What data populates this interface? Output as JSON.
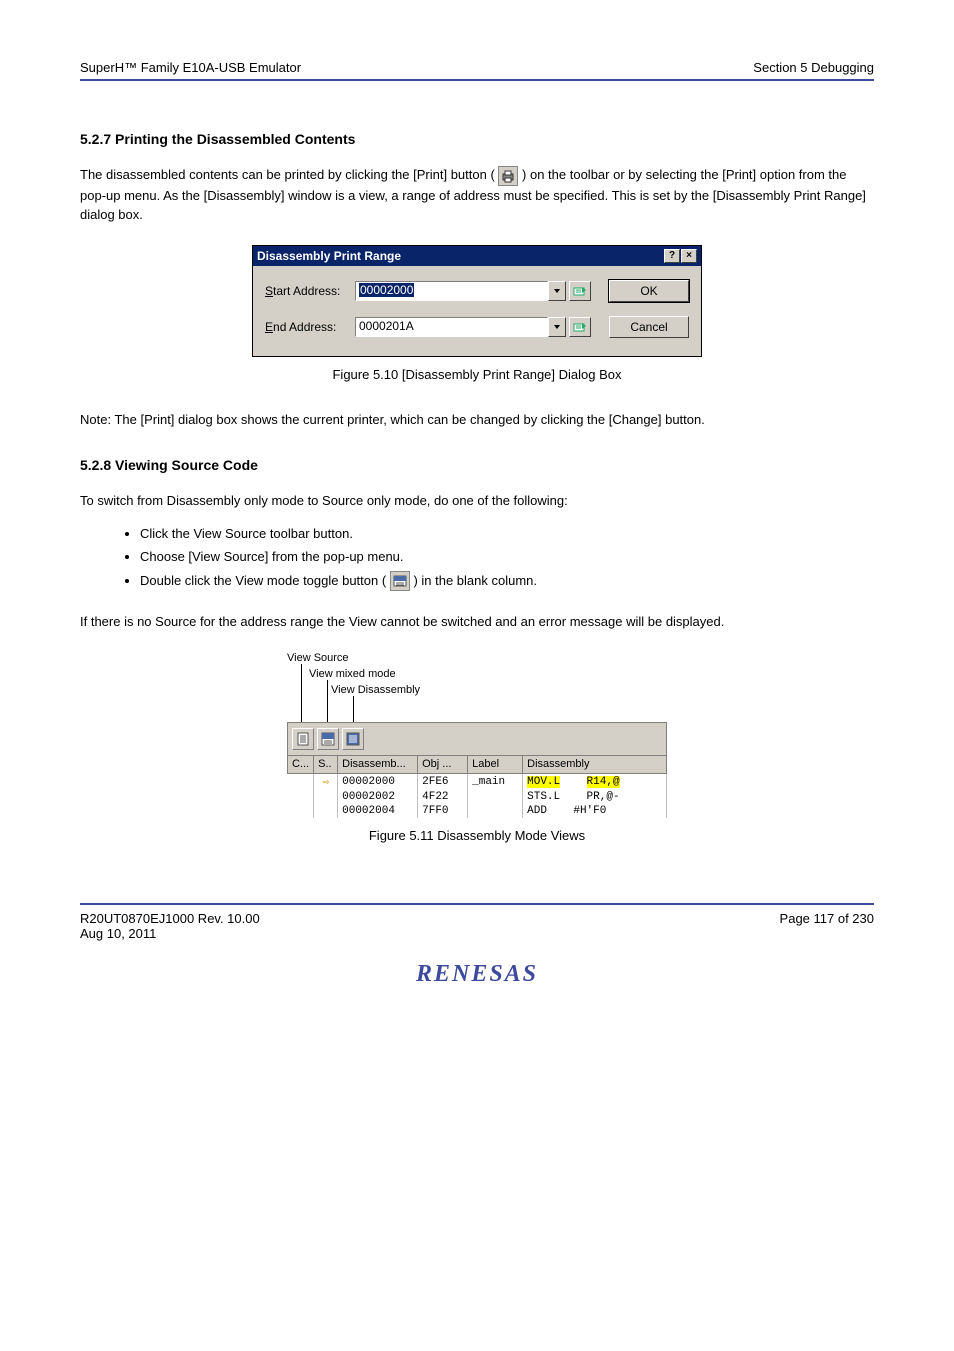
{
  "header": {
    "left": "SuperH™ Family E10A-USB Emulator",
    "right": "Section 5   Debugging"
  },
  "section1": {
    "title": "5.2.7     Printing the Disassembled Contents",
    "para1_a": "The disassembled contents can be printed by clicking the [Print] button (",
    "para1_b": ") on the toolbar or by selecting the [Print] option from the pop-up menu.  As the [Disassembly] window is a view, a range of address must be specified.  This is set by the [Disassembly Print Range] dialog box.",
    "note": "Note: The [Print] dialog box shows the current printer, which can be changed by clicking the [Change] button."
  },
  "dialog": {
    "title": "Disassembly Print Range",
    "start_label": "Start Address:",
    "start_value": "00002000",
    "end_label": "End Address:",
    "end_value": "0000201A",
    "ok": "OK",
    "cancel": "Cancel",
    "title_bg": "#0a246a",
    "body_bg": "#d4d0c8"
  },
  "figure1_caption": "Figure 5.10   [Disassembly Print Range] Dialog Box",
  "section2": {
    "title": "5.2.8     Viewing Source Code",
    "para1": "To switch from Disassembly only mode to Source only mode, do one of the following:",
    "bullets": [
      "Click the View Source toolbar button.",
      "Choose [View Source] from the pop-up menu.",
      "Double click the View mode toggle button ("
    ],
    "bullet3_suffix": ") in the blank column.",
    "para2": "If there is no Source for the address range the View cannot be switched and an error message will be displayed."
  },
  "toolbar_shot": {
    "callouts": [
      "View Source",
      "View mixed mode",
      "View Disassembly"
    ],
    "columns": [
      "C...",
      "S..",
      "Disassemb...",
      "Obj ...",
      "Label",
      "Disassembly"
    ],
    "rows": [
      {
        "s": "⇨",
        "addr": "00002000",
        "obj": "2FE6",
        "label": "_main",
        "dis1": "MOV.L",
        "dis2": "R14,@",
        "hl": true
      },
      {
        "s": "",
        "addr": "00002002",
        "obj": "4F22",
        "label": "",
        "dis1": "STS.L",
        "dis2": "PR,@-",
        "hl": false
      },
      {
        "s": "",
        "addr": "00002004",
        "obj": "7FF0",
        "label": "",
        "dis1": "ADD",
        "dis2": "#H'F0",
        "hl": false
      }
    ]
  },
  "figure2_caption": "Figure 5.11   Disassembly Mode Views",
  "footer": {
    "left": "R20UT0870EJ1000   Rev. 10.00",
    "right": "Page 117 of 230",
    "date": "Aug 10, 2011"
  },
  "colors": {
    "rule": "#3d4a9e",
    "highlight": "#ffff00"
  }
}
